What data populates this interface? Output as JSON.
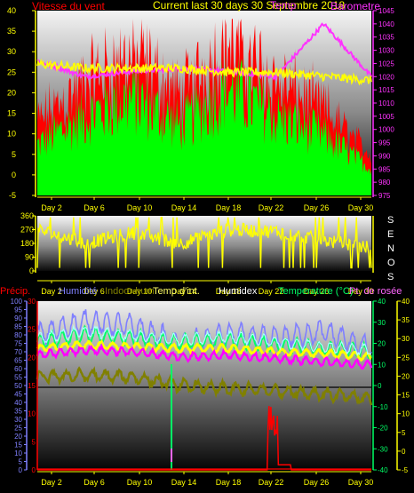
{
  "colors": {
    "wind": "#ff0000",
    "gust": "#00ff00",
    "dir": "#ffff00",
    "baro": "#ff33ff",
    "temp": "#ffff00",
    "hum": "#8080ff",
    "indoor": "#808000",
    "dew": "#ff00ff",
    "heat": "#ffffff",
    "precip": "#ff0000",
    "tempin": "#00ff66"
  },
  "days": [
    "Day 2",
    "Day 6",
    "Day 10",
    "Day 14",
    "Day 18",
    "Day 22",
    "Day 26",
    "Day 30"
  ],
  "panel1": {
    "title": "Current last 30 days 30 Septembre 2018",
    "title_overlap": "Temp",
    "left_label": "Vitesse du vent",
    "right_label": "Barometre",
    "left_ticks": [
      "40",
      "35",
      "30",
      "25",
      "20",
      "15",
      "10",
      "5",
      "0",
      "-5"
    ],
    "right_ticks": [
      "1045",
      "1040",
      "1035",
      "1030",
      "1025",
      "1020",
      "1015",
      "1010",
      "1005",
      "1000",
      "995",
      "990",
      "985",
      "980",
      "975"
    ]
  },
  "panel2": {
    "ticks": [
      "360",
      "270",
      "180",
      "90",
      "0"
    ],
    "compass": [
      "S",
      "E",
      "N",
      "O",
      "S"
    ]
  },
  "panel3": {
    "labels": {
      "precip": "Précip.",
      "hum": "Humidité",
      "indoor": "Indoor hum",
      "tempin": "Temp d'int.",
      "heat": "Humidex",
      "temp": "Temperature (°C)",
      "dew": "Pt. de rosée"
    },
    "left_ticks": [
      "100",
      "95",
      "90",
      "85",
      "80",
      "75",
      "70",
      "65",
      "60",
      "55",
      "50",
      "45",
      "40",
      "35",
      "30",
      "25",
      "20",
      "15",
      "10",
      "5",
      "0"
    ],
    "precip_ticks": [
      "30",
      "25",
      "20",
      "15",
      "10",
      "5",
      "0"
    ],
    "right_ticks_a": [
      "40",
      "30",
      "20",
      "10",
      "0",
      "-10",
      "-20",
      "-30",
      "-40"
    ],
    "right_ticks_b": [
      "40",
      "35",
      "30",
      "25",
      "20",
      "15",
      "10",
      "5",
      "0",
      "-5"
    ]
  },
  "chart_data": [
    {
      "type": "area",
      "title": "Current last 30 days 30 Septembre 2018",
      "x": [
        "Day 2",
        "Day 6",
        "Day 10",
        "Day 14",
        "Day 18",
        "Day 22",
        "Day 26",
        "Day 30"
      ],
      "ylim": [
        -5,
        40
      ],
      "y2lim": [
        975,
        1045
      ],
      "series": [
        {
          "name": "Vitesse du vent",
          "values": [
            8,
            14,
            18,
            12,
            20,
            14,
            10,
            3
          ]
        },
        {
          "name": "Barometre",
          "values": [
            1026,
            1020,
            1022,
            1023,
            1022,
            1020,
            1040,
            1020
          ]
        },
        {
          "name": "Temp",
          "values": [
            27,
            26,
            26,
            26,
            25,
            25,
            24,
            23
          ]
        }
      ]
    },
    {
      "type": "line",
      "x": [
        "Day 2",
        "Day 6",
        "Day 10",
        "Day 14",
        "Day 18",
        "Day 22",
        "Day 26",
        "Day 30"
      ],
      "ylim": [
        0,
        360
      ],
      "series": [
        {
          "values": [
            270,
            180,
            250,
            180,
            270,
            260,
            200,
            150
          ]
        }
      ]
    },
    {
      "type": "line",
      "x": [
        "Day 2",
        "Day 6",
        "Day 10",
        "Day 14",
        "Day 18",
        "Day 22",
        "Day 26",
        "Day 30"
      ],
      "ylim": [
        0,
        100
      ],
      "series": [
        {
          "name": "Humidité",
          "values": [
            80,
            88,
            85,
            75,
            80,
            78,
            82,
            72
          ]
        },
        {
          "name": "Indoor hum",
          "values": [
            55,
            56,
            55,
            50,
            48,
            47,
            45,
            42
          ]
        },
        {
          "name": "Temperature (°C)",
          "values": [
            27,
            28,
            27,
            26,
            26,
            25,
            24,
            22
          ]
        },
        {
          "name": "Pt. de rosée",
          "values": [
            20,
            23,
            22,
            18,
            19,
            18,
            16,
            14
          ]
        },
        {
          "name": "Précip.",
          "values": [
            0,
            1,
            0,
            0,
            0,
            20,
            0,
            0
          ]
        }
      ]
    }
  ]
}
